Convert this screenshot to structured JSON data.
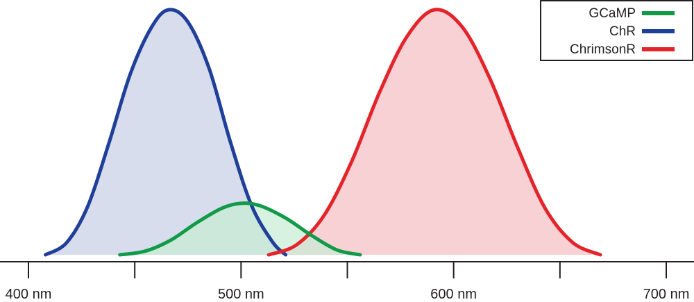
{
  "chart_data": {
    "type": "area",
    "title": "",
    "xlabel": "",
    "ylabel": "",
    "xlim": [
      400,
      700
    ],
    "ylim": [
      0,
      1
    ],
    "grid": false,
    "legend_position": "top-right",
    "x_ticks": [
      {
        "value": 400,
        "label": "400 nm"
      },
      {
        "value": 450,
        "label": ""
      },
      {
        "value": 500,
        "label": "500 nm"
      },
      {
        "value": 550,
        "label": ""
      },
      {
        "value": 600,
        "label": "600 nm"
      },
      {
        "value": 650,
        "label": ""
      },
      {
        "value": 700,
        "label": "700 nm"
      }
    ],
    "series": [
      {
        "name": "ChR",
        "color": "#1f3f99",
        "fill": "#d5dbeb",
        "x": [
          408,
          418,
          428,
          438,
          448,
          458,
          466,
          475,
          485,
          495,
          505,
          515,
          521
        ],
        "y": [
          0.0,
          0.05,
          0.2,
          0.46,
          0.74,
          0.93,
          1.0,
          0.95,
          0.76,
          0.46,
          0.2,
          0.05,
          0.0
        ]
      },
      {
        "name": "GCaMP",
        "color": "#119a47",
        "fill": "#c6ecd3",
        "x": [
          443,
          455,
          467,
          479,
          491,
          500,
          509,
          521,
          533,
          545,
          556
        ],
        "y": [
          0.0,
          0.015,
          0.06,
          0.13,
          0.19,
          0.21,
          0.2,
          0.15,
          0.08,
          0.02,
          0.0
        ]
      },
      {
        "name": "ChrimsonR",
        "color": "#e3242b",
        "fill": "#f8cfd3",
        "x": [
          513,
          526,
          539,
          552,
          565,
          578,
          591,
          604,
          617,
          630,
          643,
          656,
          669
        ],
        "y": [
          0.0,
          0.04,
          0.16,
          0.38,
          0.66,
          0.89,
          1.0,
          0.93,
          0.72,
          0.44,
          0.19,
          0.05,
          0.0
        ]
      }
    ]
  }
}
